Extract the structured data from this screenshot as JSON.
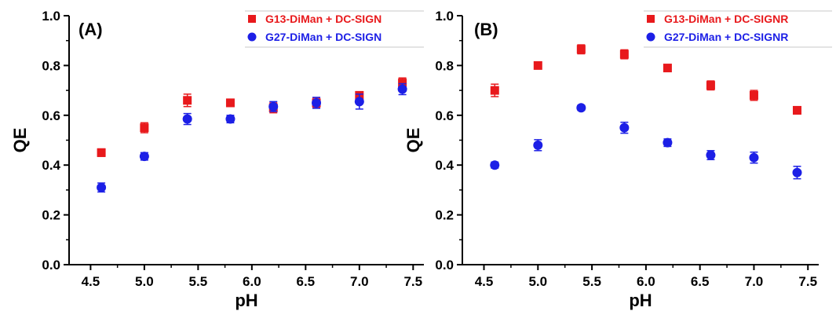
{
  "chart_data": [
    {
      "type": "scatter",
      "panel_label": "(A)",
      "xlabel": "pH",
      "ylabel": "QE",
      "xlim": [
        4.3,
        7.6
      ],
      "ylim": [
        0.0,
        1.0
      ],
      "xticks": [
        "4.5",
        "5.0",
        "5.5",
        "6.0",
        "6.5",
        "7.0",
        "7.5"
      ],
      "yticks": [
        "0.0",
        "0.2",
        "0.4",
        "0.6",
        "0.8",
        "1.0"
      ],
      "legend": "top-right",
      "series": [
        {
          "name": "G13-DiMan + DC-SIGN",
          "marker": "square",
          "color": "#e8191c",
          "x": [
            4.6,
            5.0,
            5.4,
            5.8,
            6.2,
            6.6,
            7.0,
            7.4
          ],
          "y": [
            0.45,
            0.55,
            0.66,
            0.65,
            0.63,
            0.65,
            0.68,
            0.73
          ],
          "err": [
            0.015,
            0.02,
            0.025,
            0.015,
            0.02,
            0.02,
            0.015,
            0.02
          ]
        },
        {
          "name": "G27-DiMan + DC-SIGN",
          "marker": "circle",
          "color": "#1c1fe6",
          "x": [
            4.6,
            5.0,
            5.4,
            5.8,
            6.2,
            6.6,
            7.0,
            7.4
          ],
          "y": [
            0.31,
            0.435,
            0.585,
            0.585,
            0.635,
            0.65,
            0.655,
            0.705
          ],
          "err": [
            0.018,
            0.015,
            0.022,
            0.015,
            0.02,
            0.022,
            0.03,
            0.022
          ]
        }
      ]
    },
    {
      "type": "scatter",
      "panel_label": "(B)",
      "xlabel": "pH",
      "ylabel": "QE",
      "xlim": [
        4.3,
        7.6
      ],
      "ylim": [
        0.0,
        1.0
      ],
      "xticks": [
        "4.5",
        "5.0",
        "5.5",
        "6.0",
        "6.5",
        "7.0",
        "7.5"
      ],
      "yticks": [
        "0.0",
        "0.2",
        "0.4",
        "0.6",
        "0.8",
        "1.0"
      ],
      "legend": "top-right",
      "series": [
        {
          "name": "G13-DiMan + DC-SIGNR",
          "marker": "square",
          "color": "#e8191c",
          "x": [
            4.6,
            5.0,
            5.4,
            5.8,
            6.2,
            6.6,
            7.0,
            7.4
          ],
          "y": [
            0.7,
            0.8,
            0.865,
            0.845,
            0.79,
            0.72,
            0.68,
            0.62
          ],
          "err": [
            0.025,
            0.012,
            0.018,
            0.018,
            0.012,
            0.018,
            0.02,
            0.015
          ]
        },
        {
          "name": "G27-DiMan + DC-SIGNR",
          "marker": "circle",
          "color": "#1c1fe6",
          "x": [
            4.6,
            5.0,
            5.4,
            5.8,
            6.2,
            6.6,
            7.0,
            7.4
          ],
          "y": [
            0.4,
            0.48,
            0.63,
            0.55,
            0.49,
            0.44,
            0.43,
            0.37
          ],
          "err": [
            0.012,
            0.022,
            0.01,
            0.022,
            0.015,
            0.018,
            0.022,
            0.025
          ]
        }
      ]
    }
  ]
}
